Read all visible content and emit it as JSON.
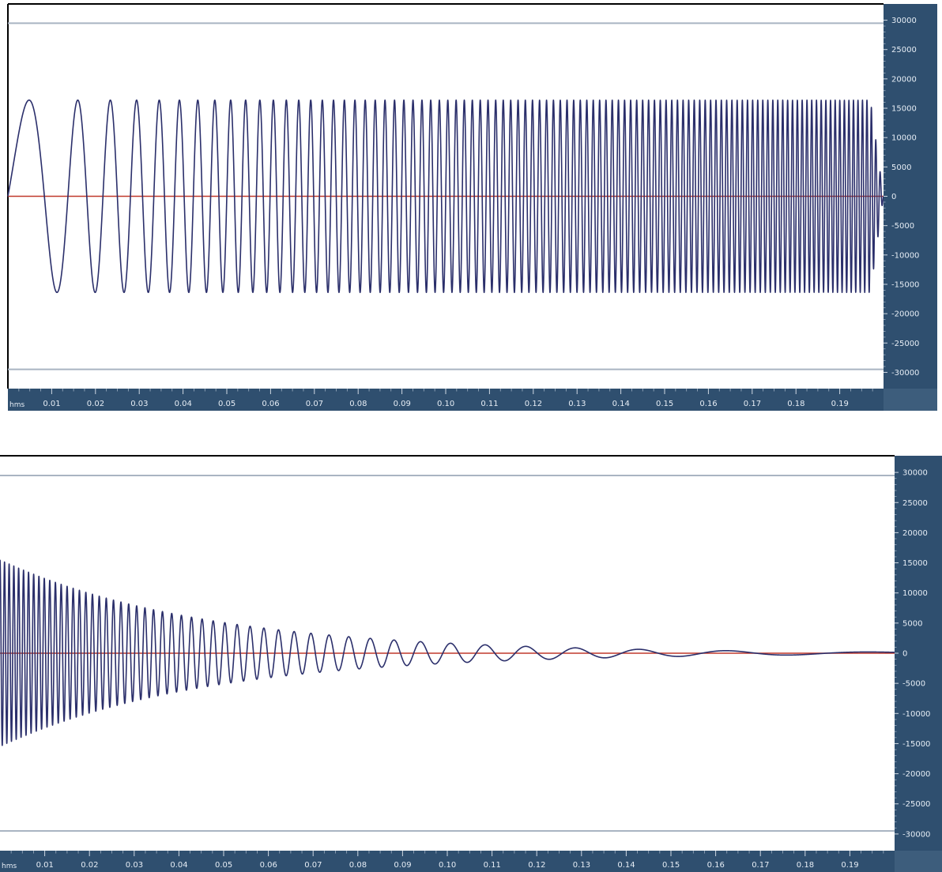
{
  "chart_data": [
    {
      "type": "line",
      "x_unit_label": "hms",
      "x_ticks": [
        "0.01",
        "0.02",
        "0.03",
        "0.04",
        "0.05",
        "0.06",
        "0.07",
        "0.08",
        "0.09",
        "0.10",
        "0.11",
        "0.12",
        "0.13",
        "0.14",
        "0.15",
        "0.16",
        "0.17",
        "0.18",
        "0.19"
      ],
      "y_ticks": [
        "30000",
        "25000",
        "20000",
        "15000",
        "10000",
        "5000",
        "0",
        "-5000",
        "-10000",
        "-15000",
        "-20000",
        "-25000",
        "-30000"
      ],
      "xlim": [
        0,
        0.2
      ],
      "ylim": [
        -32768,
        32767
      ],
      "limit_lines": [
        29491,
        -29491
      ],
      "waveform": {
        "kind": "sine sweep, rising frequency",
        "amplitude": 16384,
        "start_frequency_hz": 40,
        "end_frequency_hz": 1000,
        "duration_s": 0.2
      },
      "colors": {
        "wave": "#2b2f6b",
        "zero_line": "#c0392b",
        "ruler": "#2f4f6f",
        "limit_line": "#a9b4c2"
      }
    },
    {
      "type": "line",
      "x_unit_label": "hms",
      "x_ticks": [
        "0.01",
        "0.02",
        "0.03",
        "0.04",
        "0.05",
        "0.06",
        "0.07",
        "0.08",
        "0.09",
        "0.10",
        "0.11",
        "0.12",
        "0.13",
        "0.14",
        "0.15",
        "0.16",
        "0.17",
        "0.18",
        "0.19"
      ],
      "y_ticks": [
        "30000",
        "25000",
        "20000",
        "15000",
        "10000",
        "5000",
        "0",
        "-5000",
        "-10000",
        "-15000",
        "-20000",
        "-25000",
        "-30000"
      ],
      "xlim": [
        0,
        0.2
      ],
      "ylim": [
        -32768,
        32767
      ],
      "limit_lines": [
        29491,
        -29491
      ],
      "waveform": {
        "kind": "decaying oscillation, falling frequency",
        "start_amplitude": 15500,
        "start_frequency_hz": 1000,
        "end_frequency_hz": 20,
        "duration_s": 0.2
      },
      "colors": {
        "wave": "#2b2f6b",
        "zero_line": "#c0392b",
        "ruler": "#2f4f6f",
        "limit_line": "#a9b4c2"
      }
    }
  ]
}
